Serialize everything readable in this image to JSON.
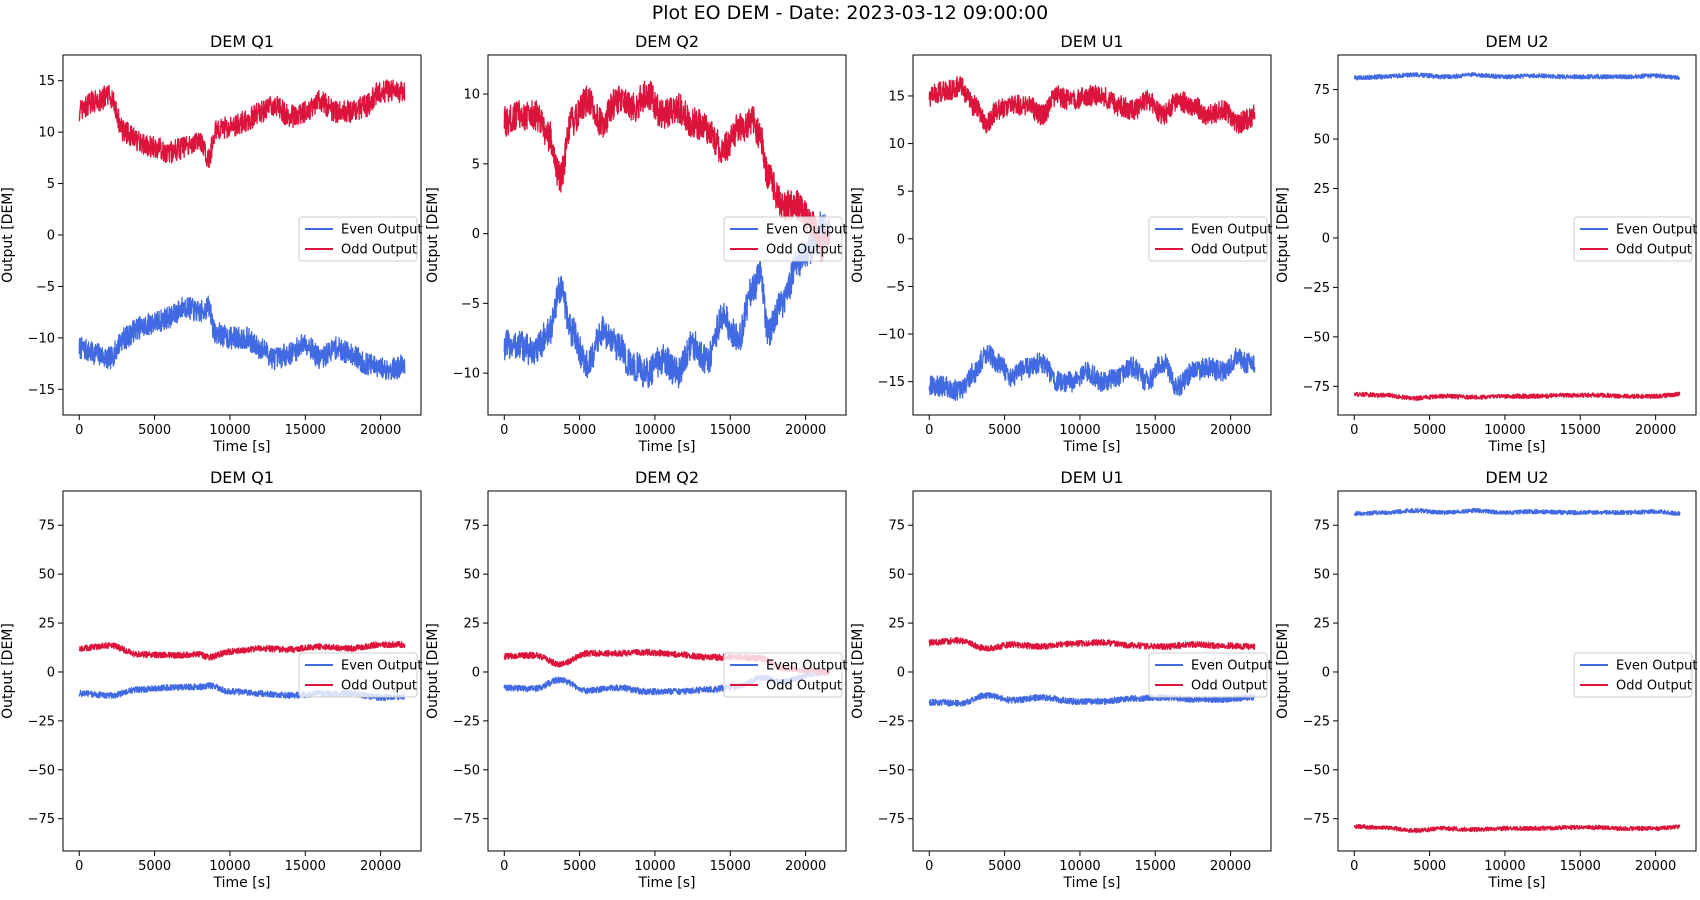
{
  "figure": {
    "title": "Plot EO DEM - Date: 2023-03-12 09:00:00"
  },
  "chart_data": [
    {
      "type": "line",
      "title": "DEM Q1",
      "xlabel": "Time [s]",
      "ylabel": "Output [DEM]",
      "xlim": [
        -1080,
        22680
      ],
      "ylim": [
        -17.5,
        17.5
      ],
      "xticks": [
        0,
        5000,
        10000,
        15000,
        20000
      ],
      "yticks": [
        -15,
        -10,
        -5,
        0,
        5,
        10,
        15
      ],
      "legend": {
        "position": "center-right",
        "entries": [
          "Even Output",
          "Odd Output"
        ]
      },
      "series": [
        {
          "name": "Even Output",
          "color": "#4169e1",
          "noise": 1.1,
          "x": [
            0,
            1000,
            2000,
            3000,
            4000,
            5000,
            6000,
            7000,
            8000,
            8600,
            9000,
            10000,
            11000,
            12000,
            13000,
            14000,
            15000,
            16000,
            17000,
            18000,
            19000,
            20000,
            21000,
            21600
          ],
          "y": [
            -11,
            -11.5,
            -12,
            -10,
            -9,
            -8.5,
            -8,
            -7,
            -7.5,
            -7,
            -9.5,
            -10,
            -10,
            -11,
            -12,
            -11.5,
            -10.5,
            -12,
            -11,
            -11.5,
            -12.5,
            -13,
            -13,
            -12.5
          ]
        },
        {
          "name": "Odd Output",
          "color": "#dc143c",
          "noise": 1.1,
          "x": [
            0,
            1000,
            2000,
            3000,
            4000,
            5000,
            6000,
            7000,
            8000,
            8600,
            9000,
            10000,
            11000,
            12000,
            13000,
            14000,
            15000,
            16000,
            17000,
            18000,
            19000,
            20000,
            21000,
            21600
          ],
          "y": [
            12,
            13,
            13.5,
            10,
            9,
            8.5,
            8,
            8.5,
            9,
            7.5,
            10,
            10.5,
            11,
            12,
            12.5,
            11.5,
            12,
            13,
            12,
            12,
            12.5,
            14,
            14,
            14
          ]
        }
      ]
    },
    {
      "type": "line",
      "title": "DEM Q2",
      "xlabel": "Time [s]",
      "ylabel": "Output [DEM]",
      "xlim": [
        -1080,
        22680
      ],
      "ylim": [
        -13,
        12.8
      ],
      "xticks": [
        0,
        5000,
        10000,
        15000,
        20000
      ],
      "yticks": [
        -10,
        -5,
        0,
        5,
        10
      ],
      "legend": {
        "position": "center-right",
        "entries": [
          "Even Output",
          "Odd Output"
        ]
      },
      "series": [
        {
          "name": "Even Output",
          "color": "#4169e1",
          "noise": 1.1,
          "x": [
            0,
            1000,
            2000,
            3000,
            3700,
            4500,
            5500,
            6500,
            7500,
            8500,
            9500,
            10500,
            11500,
            12500,
            13500,
            14500,
            15500,
            16500,
            17000,
            17500,
            18500,
            19500,
            20500,
            21000,
            21600
          ],
          "y": [
            -8,
            -8,
            -8.5,
            -7,
            -4,
            -7,
            -9.5,
            -7,
            -8,
            -9.5,
            -10,
            -9,
            -10,
            -8,
            -9,
            -6,
            -7.5,
            -4,
            -3,
            -7,
            -5,
            -2,
            -1,
            0.5,
            0
          ]
        },
        {
          "name": "Odd Output",
          "color": "#dc143c",
          "noise": 1.1,
          "x": [
            0,
            1000,
            2000,
            3000,
            3700,
            4500,
            5500,
            6500,
            7500,
            8500,
            9500,
            10500,
            11500,
            12500,
            13500,
            14500,
            15500,
            16500,
            17000,
            17500,
            18500,
            19500,
            20500,
            21000,
            21600
          ],
          "y": [
            8,
            8.5,
            8.5,
            7,
            4,
            8,
            9.5,
            8,
            9.5,
            9,
            10,
            8.5,
            9,
            8,
            7.5,
            6,
            7.5,
            8,
            7,
            4,
            2,
            2,
            0.5,
            -1,
            0
          ]
        }
      ]
    },
    {
      "type": "line",
      "title": "DEM U1",
      "xlabel": "Time [s]",
      "ylabel": "Output [DEM]",
      "xlim": [
        -1080,
        22680
      ],
      "ylim": [
        -18.5,
        19.3
      ],
      "xticks": [
        0,
        5000,
        10000,
        15000,
        20000
      ],
      "yticks": [
        -15,
        -10,
        -5,
        0,
        5,
        10,
        15
      ],
      "legend": {
        "position": "center-right",
        "entries": [
          "Even Output",
          "Odd Output"
        ]
      },
      "series": [
        {
          "name": "Even Output",
          "color": "#4169e1",
          "noise": 1.1,
          "x": [
            0,
            1000,
            2000,
            3000,
            3800,
            4500,
            5500,
            6500,
            7500,
            8500,
            9500,
            10500,
            11500,
            12500,
            13500,
            14500,
            15500,
            16500,
            17500,
            18500,
            19500,
            20500,
            21000,
            21600
          ],
          "y": [
            -15.5,
            -15.5,
            -16,
            -14,
            -12,
            -13,
            -14.5,
            -13.5,
            -13,
            -15,
            -15,
            -14,
            -15,
            -14.5,
            -13.5,
            -15,
            -13,
            -15.5,
            -14,
            -13.5,
            -14,
            -12.5,
            -13,
            -13
          ]
        },
        {
          "name": "Odd Output",
          "color": "#dc143c",
          "noise": 1.1,
          "x": [
            0,
            1000,
            2000,
            3000,
            3800,
            4500,
            5500,
            6500,
            7500,
            8500,
            9500,
            10500,
            11500,
            12500,
            13500,
            14500,
            15500,
            16500,
            17500,
            18500,
            19500,
            20500,
            21000,
            21600
          ],
          "y": [
            15,
            15.5,
            16,
            14,
            12,
            13.5,
            14,
            14,
            13,
            15,
            14.5,
            15,
            15,
            14,
            13.5,
            14.5,
            13,
            14.5,
            14,
            13,
            13.5,
            12,
            12.5,
            13
          ]
        }
      ]
    },
    {
      "type": "line",
      "title": "DEM U2",
      "xlabel": "Time [s]",
      "ylabel": "Output [DEM]",
      "xlim": [
        -1080,
        22680
      ],
      "ylim": [
        -89.5,
        92.5
      ],
      "xticks": [
        0,
        5000,
        10000,
        15000,
        20000
      ],
      "yticks": [
        -75,
        -50,
        -25,
        0,
        25,
        50,
        75
      ],
      "legend": {
        "position": "center-right",
        "entries": [
          "Even Output",
          "Odd Output"
        ]
      },
      "series": [
        {
          "name": "Even Output",
          "color": "#4169e1",
          "noise": 1.1,
          "x": [
            0,
            2000,
            4000,
            6000,
            8000,
            10000,
            12000,
            14000,
            16000,
            18000,
            20000,
            21600
          ],
          "y": [
            81,
            81.5,
            82.5,
            81.5,
            82.5,
            81.5,
            82,
            81.5,
            81.5,
            81.5,
            82,
            81
          ]
        },
        {
          "name": "Odd Output",
          "color": "#dc143c",
          "noise": 1.1,
          "x": [
            0,
            2000,
            4000,
            6000,
            8000,
            10000,
            12000,
            14000,
            16000,
            18000,
            20000,
            21600
          ],
          "y": [
            -79,
            -79.5,
            -81,
            -80,
            -80.5,
            -80,
            -80,
            -79.5,
            -79.5,
            -80,
            -80,
            -79
          ]
        }
      ]
    },
    {
      "type": "line",
      "title": "DEM Q1",
      "xlabel": "Time [s]",
      "ylabel": "Output [DEM]",
      "xlim": [
        -1080,
        22680
      ],
      "ylim": [
        -91.5,
        92.5
      ],
      "xticks": [
        0,
        5000,
        10000,
        15000,
        20000
      ],
      "yticks": [
        -75,
        -50,
        -25,
        0,
        25,
        50,
        75
      ],
      "legend": {
        "position": "center-right",
        "entries": [
          "Even Output",
          "Odd Output"
        ]
      },
      "series": [
        {
          "name": "Even Output",
          "color": "#4169e1",
          "noise": 1.6,
          "x": [
            0,
            2000,
            4000,
            6000,
            8000,
            8600,
            10000,
            12000,
            14000,
            16000,
            18000,
            20000,
            21600
          ],
          "y": [
            -11,
            -12,
            -9,
            -8,
            -7.5,
            -7,
            -10,
            -11,
            -12,
            -11,
            -11,
            -13,
            -12.5
          ]
        },
        {
          "name": "Odd Output",
          "color": "#dc143c",
          "noise": 1.6,
          "x": [
            0,
            2000,
            4000,
            6000,
            8000,
            8600,
            10000,
            12000,
            14000,
            16000,
            18000,
            20000,
            21600
          ],
          "y": [
            12,
            13.5,
            9,
            8.5,
            9,
            7.5,
            10.5,
            12,
            11.5,
            13,
            12,
            14,
            14
          ]
        }
      ]
    },
    {
      "type": "line",
      "title": "DEM Q2",
      "xlabel": "Time [s]",
      "ylabel": "Output [DEM]",
      "xlim": [
        -1080,
        22680
      ],
      "ylim": [
        -91.5,
        92.5
      ],
      "xticks": [
        0,
        5000,
        10000,
        15000,
        20000
      ],
      "yticks": [
        -75,
        -50,
        -25,
        0,
        25,
        50,
        75
      ],
      "legend": {
        "position": "center-right",
        "entries": [
          "Even Output",
          "Odd Output"
        ]
      },
      "series": [
        {
          "name": "Even Output",
          "color": "#4169e1",
          "noise": 1.6,
          "x": [
            0,
            2000,
            3700,
            5500,
            7500,
            9500,
            11500,
            13500,
            15500,
            17000,
            18500,
            20500,
            21600
          ],
          "y": [
            -8,
            -8.5,
            -4,
            -9.5,
            -8,
            -10,
            -10,
            -9,
            -7.5,
            -3,
            -5,
            -1,
            0
          ]
        },
        {
          "name": "Odd Output",
          "color": "#dc143c",
          "noise": 1.6,
          "x": [
            0,
            2000,
            3700,
            5500,
            7500,
            9500,
            11500,
            13500,
            15500,
            17000,
            18500,
            20500,
            21600
          ],
          "y": [
            8,
            8.5,
            4,
            9.5,
            9.5,
            10,
            9,
            7.5,
            7.5,
            7,
            2,
            0.5,
            0
          ]
        }
      ]
    },
    {
      "type": "line",
      "title": "DEM U1",
      "xlabel": "Time [s]",
      "ylabel": "Output [DEM]",
      "xlim": [
        -1080,
        22680
      ],
      "ylim": [
        -91.5,
        92.5
      ],
      "xticks": [
        0,
        5000,
        10000,
        15000,
        20000
      ],
      "yticks": [
        -75,
        -50,
        -25,
        0,
        25,
        50,
        75
      ],
      "legend": {
        "position": "center-right",
        "entries": [
          "Even Output",
          "Odd Output"
        ]
      },
      "series": [
        {
          "name": "Even Output",
          "color": "#4169e1",
          "noise": 1.6,
          "x": [
            0,
            2000,
            3800,
            5500,
            7500,
            9500,
            11500,
            13500,
            15500,
            17500,
            19500,
            21600
          ],
          "y": [
            -15.5,
            -16,
            -12,
            -14.5,
            -13,
            -15,
            -15,
            -13.5,
            -13,
            -14,
            -14,
            -13
          ]
        },
        {
          "name": "Odd Output",
          "color": "#dc143c",
          "noise": 1.6,
          "x": [
            0,
            2000,
            3800,
            5500,
            7500,
            9500,
            11500,
            13500,
            15500,
            17500,
            19500,
            21600
          ],
          "y": [
            15,
            16,
            12,
            14,
            13,
            14.5,
            15,
            13.5,
            13,
            14,
            13.5,
            13
          ]
        }
      ]
    },
    {
      "type": "line",
      "title": "DEM U2",
      "xlabel": "Time [s]",
      "ylabel": "Output [DEM]",
      "xlim": [
        -1080,
        22680
      ],
      "ylim": [
        -91.5,
        92.5
      ],
      "xticks": [
        0,
        5000,
        10000,
        15000,
        20000
      ],
      "yticks": [
        -75,
        -50,
        -25,
        0,
        25,
        50,
        75
      ],
      "legend": {
        "position": "center-right",
        "entries": [
          "Even Output",
          "Odd Output"
        ]
      },
      "series": [
        {
          "name": "Even Output",
          "color": "#4169e1",
          "noise": 1.1,
          "x": [
            0,
            2000,
            4000,
            6000,
            8000,
            10000,
            12000,
            14000,
            16000,
            18000,
            20000,
            21600
          ],
          "y": [
            81,
            81.5,
            82.5,
            81.5,
            82.5,
            81.5,
            82,
            81.5,
            81.5,
            81.5,
            82,
            81
          ]
        },
        {
          "name": "Odd Output",
          "color": "#dc143c",
          "noise": 1.1,
          "x": [
            0,
            2000,
            4000,
            6000,
            8000,
            10000,
            12000,
            14000,
            16000,
            18000,
            20000,
            21600
          ],
          "y": [
            -79,
            -79.5,
            -81,
            -80,
            -80.5,
            -80,
            -80,
            -79.5,
            -79.5,
            -80,
            -80,
            -79
          ]
        }
      ]
    }
  ]
}
